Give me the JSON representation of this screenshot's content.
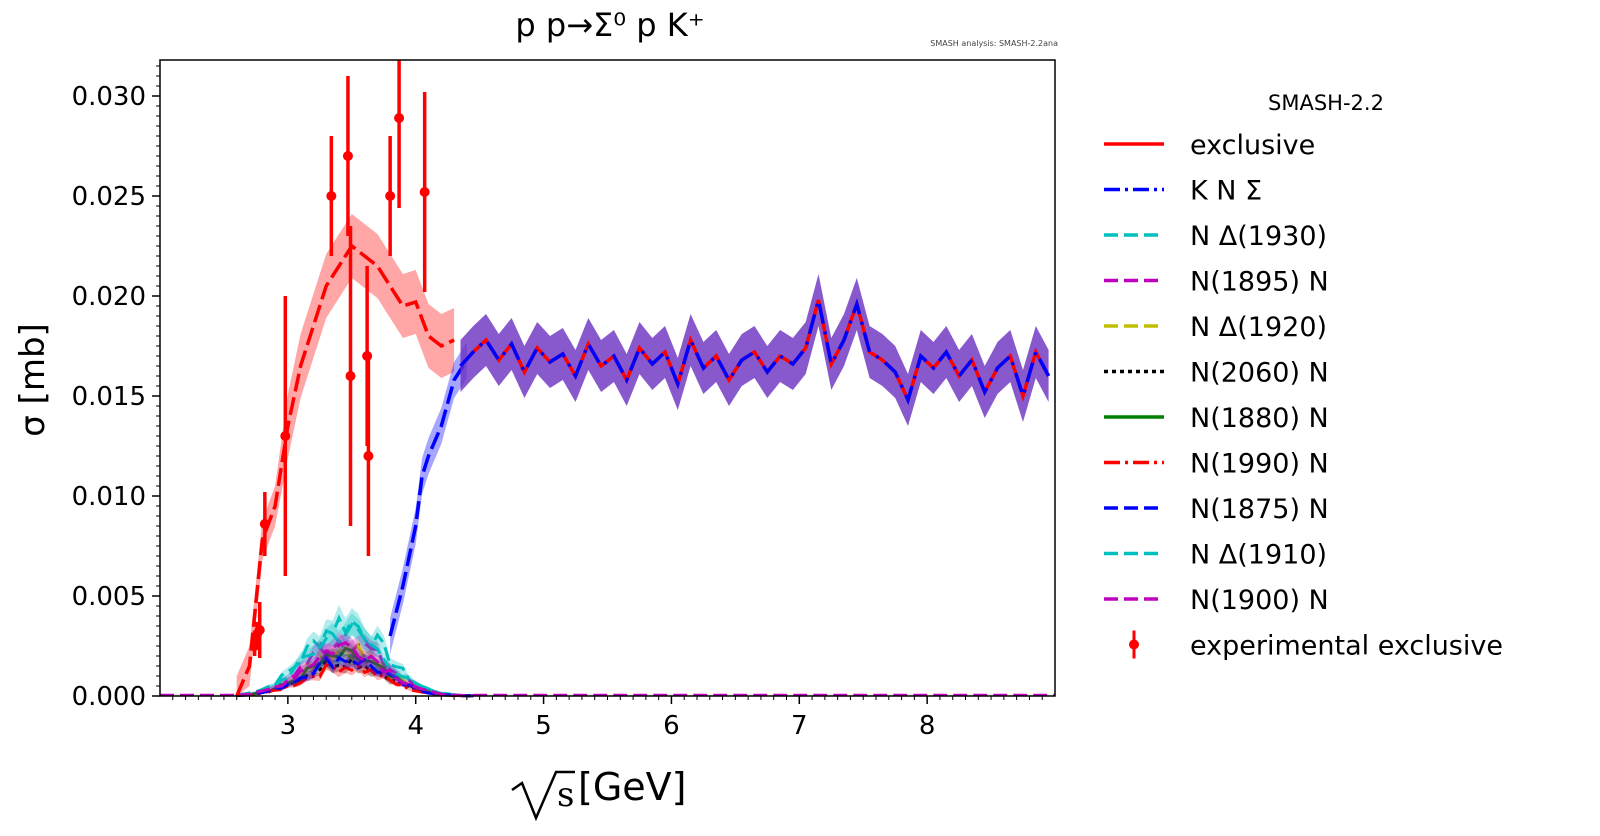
{
  "colors": {
    "red": "#ff0000",
    "blue": "#0000ff",
    "cyan": "#00bfbf",
    "magenta": "#bf00bf",
    "olive": "#bfbf00",
    "black": "#000000",
    "green": "#008000",
    "purple_band": "#6a2fc0"
  },
  "chart_data": {
    "type": "line",
    "title": "p p→Σ⁰ p K⁺",
    "watermark": "SMASH analysis: SMASH-2.2ana",
    "xlabel_root": "s",
    "xlabel_unit": "[GeV]",
    "ylabel": "σ [mb]",
    "xlim": [
      2.0,
      9.0
    ],
    "ylim": [
      0.0,
      0.0318
    ],
    "xticks": [
      3,
      4,
      5,
      6,
      7,
      8
    ],
    "yticks": [
      "0.000",
      "0.005",
      "0.010",
      "0.015",
      "0.020",
      "0.025",
      "0.030"
    ],
    "legend_title": "SMASH-2.2",
    "legend_position": "outside-right",
    "series": [
      {
        "name": "exclusive",
        "color": "#ff0000",
        "dash": "solid"
      },
      {
        "name": "K N Σ",
        "color": "#0000ff",
        "dash": "dashdot"
      },
      {
        "name": "N Δ(1930)",
        "color": "#00bfbf",
        "dash": "dashed"
      },
      {
        "name": "N(1895) N",
        "color": "#bf00bf",
        "dash": "dashed"
      },
      {
        "name": "N Δ(1920)",
        "color": "#bfbf00",
        "dash": "dashed"
      },
      {
        "name": "N(2060) N",
        "color": "#000000",
        "dash": "dotted"
      },
      {
        "name": "N(1880) N",
        "color": "#008000",
        "dash": "solid"
      },
      {
        "name": "N(1990) N",
        "color": "#ff0000",
        "dash": "dashdot"
      },
      {
        "name": "N(1875) N",
        "color": "#0000ff",
        "dash": "dashed"
      },
      {
        "name": "N Δ(1910)",
        "color": "#00bfbf",
        "dash": "dashed"
      },
      {
        "name": "N(1900) N",
        "color": "#bf00bf",
        "dash": "dashed"
      },
      {
        "name": "experimental exclusive",
        "color": "#ff0000",
        "dash": "errorbar"
      }
    ],
    "exclusive_curve": {
      "x": [
        2.6,
        2.7,
        2.8,
        2.9,
        3.0,
        3.1,
        3.2,
        3.3,
        3.4,
        3.5,
        3.6,
        3.7,
        3.8,
        3.9,
        4.0,
        4.1,
        4.2,
        4.3
      ],
      "y": [
        0.0,
        0.0015,
        0.0078,
        0.0095,
        0.0135,
        0.0165,
        0.0185,
        0.0205,
        0.0215,
        0.0225,
        0.022,
        0.0215,
        0.0205,
        0.0195,
        0.0197,
        0.018,
        0.0175,
        0.0178
      ]
    },
    "kns_curve": {
      "x": [
        3.8,
        3.9,
        4.0,
        4.05,
        4.1,
        4.2,
        4.3,
        4.4
      ],
      "y": [
        0.003,
        0.0055,
        0.0085,
        0.011,
        0.012,
        0.0135,
        0.0158,
        0.0168
      ]
    },
    "combined_curve": {
      "x": [
        4.35,
        4.45,
        4.55,
        4.65,
        4.75,
        4.85,
        4.95,
        5.05,
        5.15,
        5.25,
        5.35,
        5.45,
        5.55,
        5.65,
        5.75,
        5.85,
        5.95,
        6.05,
        6.15,
        6.25,
        6.35,
        6.45,
        6.55,
        6.65,
        6.75,
        6.85,
        6.95,
        7.05,
        7.15,
        7.25,
        7.35,
        7.45,
        7.55,
        7.65,
        7.75,
        7.85,
        7.95,
        8.05,
        8.15,
        8.25,
        8.35,
        8.45,
        8.55,
        8.65,
        8.75,
        8.85,
        8.95
      ],
      "y": [
        0.0165,
        0.0172,
        0.0178,
        0.0168,
        0.0176,
        0.0162,
        0.0174,
        0.0167,
        0.0171,
        0.016,
        0.0176,
        0.0165,
        0.017,
        0.0158,
        0.0174,
        0.0166,
        0.0172,
        0.0156,
        0.0178,
        0.0164,
        0.017,
        0.0158,
        0.0168,
        0.0172,
        0.0162,
        0.017,
        0.0166,
        0.0174,
        0.0198,
        0.0166,
        0.0178,
        0.0196,
        0.0172,
        0.0168,
        0.0162,
        0.0148,
        0.017,
        0.0164,
        0.0172,
        0.016,
        0.0168,
        0.0152,
        0.0164,
        0.017,
        0.015,
        0.0172,
        0.016
      ]
    },
    "experimental": {
      "x": [
        2.74,
        2.76,
        2.78,
        2.82,
        2.98,
        3.34,
        3.47,
        3.49,
        3.62,
        3.63,
        3.8,
        3.87,
        4.07
      ],
      "y": [
        0.0025,
        0.0031,
        0.0033,
        0.0086,
        0.013,
        0.025,
        0.027,
        0.016,
        0.017,
        0.012,
        0.025,
        0.0289,
        0.0252
      ],
      "err": [
        0.0005,
        0.0006,
        0.0014,
        0.0016,
        0.007,
        0.003,
        0.004,
        0.0075,
        0.0045,
        0.005,
        0.003,
        0.0045,
        0.005
      ]
    }
  }
}
